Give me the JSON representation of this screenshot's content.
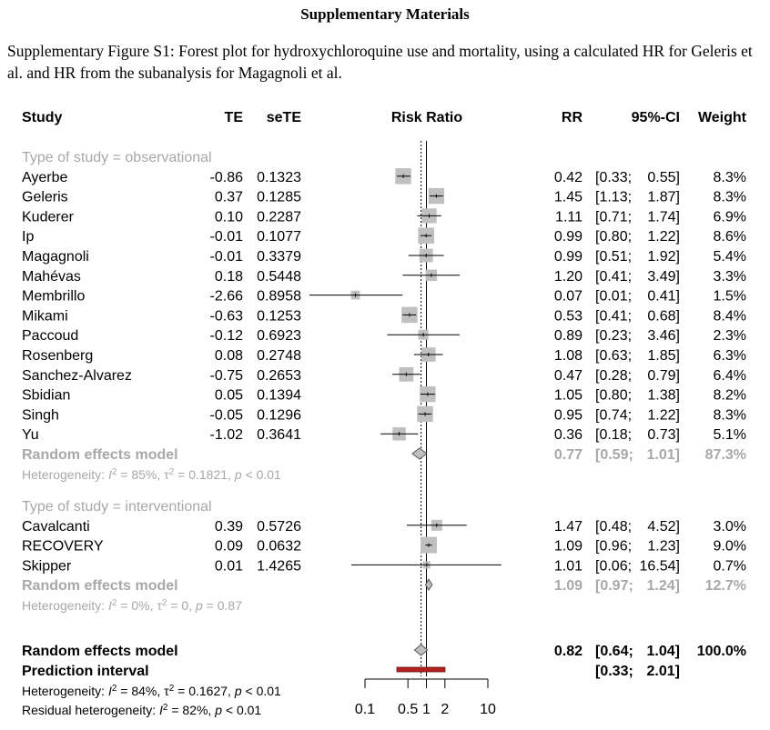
{
  "heading": "Supplementary Materials",
  "caption": "Supplementary Figure S1: Forest plot for hydroxychloroquine use and mortality, using a calculated HR for Geleris et al. and HR from the subanalysis for Magagnoli et al.",
  "chart_data": {
    "type": "forest",
    "columns": {
      "study": "Study",
      "te": "TE",
      "sete": "seTE",
      "plot": "Risk Ratio",
      "rr": "RR",
      "ci": "95%-CI",
      "weight": "Weight"
    },
    "x_scale": "log",
    "x_ticks": [
      "0.1",
      "0.5",
      "1",
      "2",
      "10"
    ],
    "x_range": [
      0.1,
      10
    ],
    "groups": [
      {
        "label": "Type of study = observational",
        "studies": [
          {
            "name": "Ayerbe",
            "te": "-0.86",
            "sete": "0.1323",
            "rr": 0.42,
            "lo": 0.33,
            "hi": 0.55,
            "rr_text": "0.42",
            "ci_text": "[0.33; 0.55]",
            "weight": "8.3%"
          },
          {
            "name": "Geleris",
            "te": "0.37",
            "sete": "0.1285",
            "rr": 1.45,
            "lo": 1.13,
            "hi": 1.87,
            "rr_text": "1.45",
            "ci_text": "[1.13; 1.87]",
            "weight": "8.3%"
          },
          {
            "name": "Kuderer",
            "te": "0.10",
            "sete": "0.2287",
            "rr": 1.11,
            "lo": 0.71,
            "hi": 1.74,
            "rr_text": "1.11",
            "ci_text": "[0.71; 1.74]",
            "weight": "6.9%"
          },
          {
            "name": "Ip",
            "te": "-0.01",
            "sete": "0.1077",
            "rr": 0.99,
            "lo": 0.8,
            "hi": 1.22,
            "rr_text": "0.99",
            "ci_text": "[0.80; 1.22]",
            "weight": "8.6%"
          },
          {
            "name": "Magagnoli",
            "te": "-0.01",
            "sete": "0.3379",
            "rr": 0.99,
            "lo": 0.51,
            "hi": 1.92,
            "rr_text": "0.99",
            "ci_text": "[0.51; 1.92]",
            "weight": "5.4%"
          },
          {
            "name": "Mahévas",
            "te": "0.18",
            "sete": "0.5448",
            "rr": 1.2,
            "lo": 0.41,
            "hi": 3.49,
            "rr_text": "1.20",
            "ci_text": "[0.41; 3.49]",
            "weight": "3.3%"
          },
          {
            "name": "Membrillo",
            "te": "-2.66",
            "sete": "0.8958",
            "rr": 0.07,
            "lo": 0.01,
            "hi": 0.41,
            "rr_text": "0.07",
            "ci_text": "[0.01; 0.41]",
            "weight": "1.5%"
          },
          {
            "name": "Mikami",
            "te": "-0.63",
            "sete": "0.1253",
            "rr": 0.53,
            "lo": 0.41,
            "hi": 0.68,
            "rr_text": "0.53",
            "ci_text": "[0.41; 0.68]",
            "weight": "8.4%"
          },
          {
            "name": "Paccoud",
            "te": "-0.12",
            "sete": "0.6923",
            "rr": 0.89,
            "lo": 0.23,
            "hi": 3.46,
            "rr_text": "0.89",
            "ci_text": "[0.23; 3.46]",
            "weight": "2.3%"
          },
          {
            "name": "Rosenberg",
            "te": "0.08",
            "sete": "0.2748",
            "rr": 1.08,
            "lo": 0.63,
            "hi": 1.85,
            "rr_text": "1.08",
            "ci_text": "[0.63; 1.85]",
            "weight": "6.3%"
          },
          {
            "name": "Sanchez-Alvarez",
            "te": "-0.75",
            "sete": "0.2653",
            "rr": 0.47,
            "lo": 0.28,
            "hi": 0.79,
            "rr_text": "0.47",
            "ci_text": "[0.28; 0.79]",
            "weight": "6.4%"
          },
          {
            "name": "Sbidian",
            "te": "0.05",
            "sete": "0.1394",
            "rr": 1.05,
            "lo": 0.8,
            "hi": 1.38,
            "rr_text": "1.05",
            "ci_text": "[0.80; 1.38]",
            "weight": "8.2%"
          },
          {
            "name": "Singh",
            "te": "-0.05",
            "sete": "0.1296",
            "rr": 0.95,
            "lo": 0.74,
            "hi": 1.22,
            "rr_text": "0.95",
            "ci_text": "[0.74; 1.22]",
            "weight": "8.3%"
          },
          {
            "name": "Yu",
            "te": "-1.02",
            "sete": "0.3641",
            "rr": 0.36,
            "lo": 0.18,
            "hi": 0.73,
            "rr_text": "0.36",
            "ci_text": "[0.18; 0.73]",
            "weight": "5.1%"
          }
        ],
        "model": {
          "name": "Random effects model",
          "rr": 0.77,
          "lo": 0.59,
          "hi": 1.01,
          "rr_text": "0.77",
          "ci_text": "[0.59; 1.01]",
          "weight": "87.3%"
        },
        "heterogeneity": {
          "prefix": "Heterogeneity: ",
          "i2": "85%",
          "tau2": "0.1821",
          "p": "< 0.01"
        }
      },
      {
        "label": "Type of study = interventional",
        "studies": [
          {
            "name": "Cavalcanti",
            "te": "0.39",
            "sete": "0.5726",
            "rr": 1.47,
            "lo": 0.48,
            "hi": 4.52,
            "rr_text": "1.47",
            "ci_text": "[0.48; 4.52]",
            "weight": "3.0%"
          },
          {
            "name": "RECOVERY",
            "te": "0.09",
            "sete": "0.0632",
            "rr": 1.09,
            "lo": 0.96,
            "hi": 1.23,
            "rr_text": "1.09",
            "ci_text": "[0.96; 1.23]",
            "weight": "9.0%"
          },
          {
            "name": "Skipper",
            "te": "0.01",
            "sete": "1.4265",
            "rr": 1.01,
            "lo": 0.06,
            "hi": 16.54,
            "rr_text": "1.01",
            "ci_text": "[0.06; 16.54]",
            "weight": "0.7%"
          }
        ],
        "model": {
          "name": "Random effects model",
          "rr": 1.09,
          "lo": 0.97,
          "hi": 1.24,
          "rr_text": "1.09",
          "ci_text": "[0.97; 1.24]",
          "weight": "12.7%"
        },
        "heterogeneity": {
          "prefix": "Heterogeneity: ",
          "i2": "0%",
          "tau2": "0",
          "p": "= 0.87"
        }
      }
    ],
    "overall": {
      "model": {
        "name": "Random effects model",
        "rr": 0.82,
        "lo": 0.64,
        "hi": 1.04,
        "rr_text": "0.82",
        "ci_text": "[0.64; 1.04]",
        "weight": "100.0%"
      },
      "prediction": {
        "name": "Prediction interval",
        "lo": 0.33,
        "hi": 2.01,
        "ci_text": "[0.33; 2.01]"
      },
      "heterogeneity": {
        "prefix": "Heterogeneity: ",
        "i2": "84%",
        "tau2": "0.1627",
        "p": "< 0.01"
      },
      "residual": {
        "prefix": "Residual heterogeneity: ",
        "i2": "82%",
        "p": "< 0.01"
      }
    },
    "colors": {
      "text": "#000000",
      "subgroup": "#a8a8a8",
      "box": "#c0c0c0",
      "diamond": "#c0c0c0",
      "prediction": "#b2201f",
      "prediction_edge": "#6b0f0f"
    }
  }
}
